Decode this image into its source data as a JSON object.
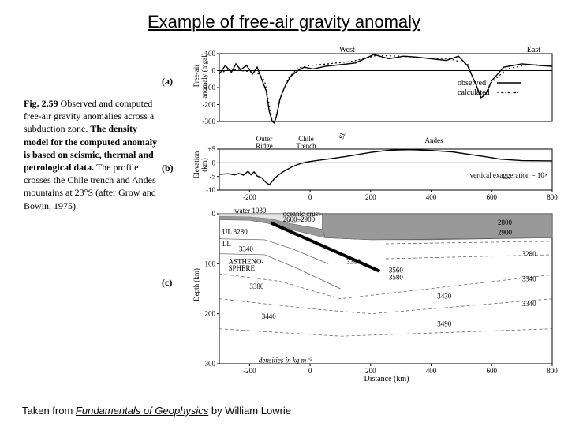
{
  "title": "Example of free-air gravity anomaly",
  "attribution_prefix": "Taken from ",
  "attribution_title": "Fundamentals of Geophysics",
  "attribution_suffix": " by William Lowrie",
  "caption": {
    "fignum": "Fig. 2.59",
    "lead": " Observed and computed free-air gravity anomalies across a subduction zone. ",
    "bold": "The density model for the computed anomaly is based on seismic, thermal and petrological data.",
    "tail": " The profile crosses the Chile trench and Andes mountains at 23°S (after Grow and Bowin, 1975)."
  },
  "chart_a": {
    "type": "line",
    "ylabel": "Free-air\nanomaly (mgal)",
    "panel_label": "(a)",
    "west_label": "West",
    "east_label": "East",
    "legend_observed": "observed",
    "legend_calculated": "calculated",
    "xlim": [
      -300,
      800
    ],
    "ylim": [
      -300,
      100
    ],
    "yticks": [
      100,
      0,
      -100,
      -200,
      -300
    ],
    "obs_color": "#000000",
    "calc_color": "#000000",
    "calc_dash": "2 3",
    "line_width": 1.4,
    "background_color": "#ffffff",
    "observed": [
      [
        -300,
        -20
      ],
      [
        -280,
        30
      ],
      [
        -260,
        -10
      ],
      [
        -245,
        40
      ],
      [
        -230,
        5
      ],
      [
        -210,
        30
      ],
      [
        -190,
        -20
      ],
      [
        -175,
        20
      ],
      [
        -160,
        -50
      ],
      [
        -145,
        -120
      ],
      [
        -135,
        -240
      ],
      [
        -125,
        -300
      ],
      [
        -118,
        -310
      ],
      [
        -110,
        -260
      ],
      [
        -100,
        -170
      ],
      [
        -85,
        -100
      ],
      [
        -65,
        -35
      ],
      [
        -40,
        0
      ],
      [
        -20,
        20
      ],
      [
        10,
        10
      ],
      [
        50,
        25
      ],
      [
        100,
        35
      ],
      [
        150,
        45
      ],
      [
        210,
        95
      ],
      [
        260,
        70
      ],
      [
        310,
        85
      ],
      [
        350,
        80
      ],
      [
        400,
        70
      ],
      [
        450,
        60
      ],
      [
        490,
        85
      ],
      [
        520,
        30
      ],
      [
        550,
        -90
      ],
      [
        565,
        -160
      ],
      [
        580,
        -140
      ],
      [
        600,
        -60
      ],
      [
        640,
        20
      ],
      [
        700,
        40
      ],
      [
        760,
        30
      ],
      [
        800,
        25
      ]
    ],
    "calculated": [
      [
        -300,
        -15
      ],
      [
        -260,
        10
      ],
      [
        -230,
        0
      ],
      [
        -200,
        -5
      ],
      [
        -170,
        -20
      ],
      [
        -150,
        -60
      ],
      [
        -135,
        -200
      ],
      [
        -125,
        -290
      ],
      [
        -118,
        -300
      ],
      [
        -108,
        -240
      ],
      [
        -95,
        -140
      ],
      [
        -70,
        -40
      ],
      [
        -40,
        15
      ],
      [
        0,
        30
      ],
      [
        60,
        40
      ],
      [
        140,
        55
      ],
      [
        220,
        90
      ],
      [
        300,
        85
      ],
      [
        380,
        75
      ],
      [
        460,
        70
      ],
      [
        520,
        40
      ],
      [
        555,
        -120
      ],
      [
        575,
        -150
      ],
      [
        600,
        -70
      ],
      [
        650,
        10
      ],
      [
        720,
        35
      ],
      [
        800,
        30
      ]
    ]
  },
  "chart_b": {
    "type": "line",
    "ylabel": "Elevation\n(km)",
    "panel_label": "(b)",
    "xlim": [
      -300,
      800
    ],
    "ylim": [
      -10,
      5
    ],
    "yticks": [
      5,
      0,
      -5,
      -10
    ],
    "xticks": [
      -200,
      0,
      200,
      400,
      600,
      800
    ],
    "labels": {
      "outer_ridge": "Outer\nRidge",
      "chile_trench": "Chile\nTrench",
      "shore_line": "Shore\nline",
      "andes": "Andes",
      "exag": "vertical exaggeration = 10×"
    },
    "line_color": "#000000",
    "line_width": 1.2,
    "profile": [
      [
        -300,
        -4.2
      ],
      [
        -270,
        -4.0
      ],
      [
        -250,
        -4.4
      ],
      [
        -235,
        -3.9
      ],
      [
        -220,
        -4.5
      ],
      [
        -205,
        -3.1
      ],
      [
        -195,
        -4.4
      ],
      [
        -185,
        -3.3
      ],
      [
        -175,
        -4.8
      ],
      [
        -160,
        -5.5
      ],
      [
        -145,
        -7.3
      ],
      [
        -135,
        -8.0
      ],
      [
        -128,
        -7.2
      ],
      [
        -118,
        -5.8
      ],
      [
        -105,
        -4.5
      ],
      [
        -85,
        -3.0
      ],
      [
        -60,
        -1.5
      ],
      [
        -40,
        -0.6
      ],
      [
        -15,
        0.2
      ],
      [
        20,
        0.8
      ],
      [
        70,
        1.5
      ],
      [
        130,
        2.5
      ],
      [
        200,
        3.8
      ],
      [
        260,
        4.6
      ],
      [
        330,
        4.8
      ],
      [
        400,
        4.5
      ],
      [
        470,
        4.0
      ],
      [
        530,
        3.0
      ],
      [
        580,
        2.2
      ],
      [
        630,
        1.3
      ],
      [
        700,
        0.8
      ],
      [
        800,
        0.7
      ]
    ]
  },
  "chart_c": {
    "type": "section",
    "ylabel": "Depth (km)",
    "xlabel": "Distance (km)",
    "panel_label": "(c)",
    "xlim": [
      -300,
      800
    ],
    "ylim": [
      0,
      300
    ],
    "yticks": [
      0,
      100,
      200,
      300
    ],
    "xticks": [
      -200,
      0,
      200,
      400,
      600,
      800
    ],
    "water_label": "water 1030",
    "ul_label": "UL 3280",
    "ll_label": "LL",
    "asth_label": "ASTHENO-\nSPHERE",
    "oceanic_crust_label": "oceanic crust\n2600–2900",
    "densities_note": "densities in kg m⁻³",
    "density_labels": [
      "3280",
      "3340",
      "3380",
      "3440",
      "3380",
      "3340",
      "3380",
      "3430",
      "3490",
      "3560-\n3580",
      "3280",
      "2800",
      "2900",
      "3340"
    ],
    "colors": {
      "water": "#e5e5e5",
      "crust": "#999999",
      "lithosphere": "#ffffff",
      "asthenosphere": "#ffffff",
      "slab_edge": "#000000",
      "dash": "#555555"
    },
    "slab_width": 4,
    "section_bg": "#ffffff"
  }
}
